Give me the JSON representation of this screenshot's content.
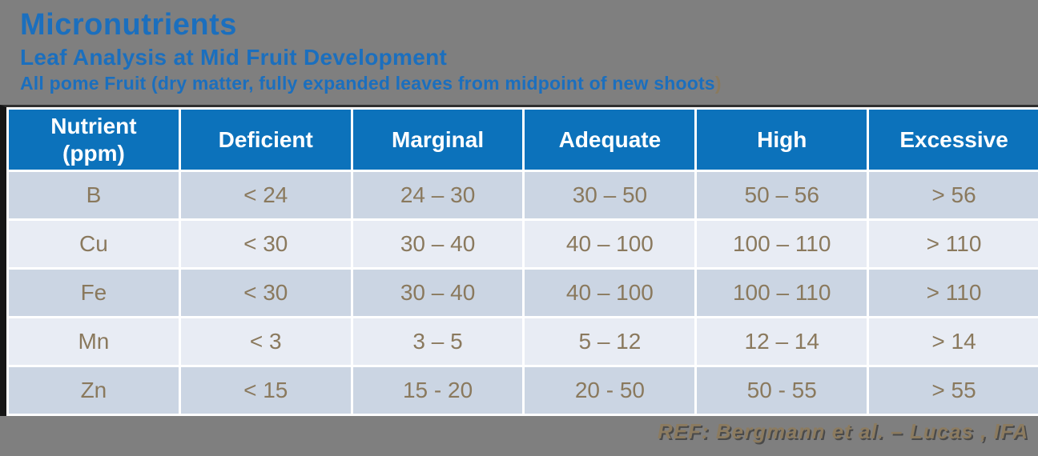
{
  "page": {
    "title": "Micronutrients",
    "subtitle": "Leaf Analysis at Mid Fruit Development",
    "subtitle2_main": "All pome Fruit (dry matter, fully expanded leaves from midpoint of new shoots",
    "subtitle2_paren": ")",
    "footer": "REF: Bergmann et al. – Lucas , IFA"
  },
  "colors": {
    "background_gray": "#7F7F7F",
    "title_blue": "#1B6FBE",
    "header_blue": "#0C72BB",
    "row_odd": "#CBD5E3",
    "row_even": "#E8ECF4",
    "cell_text_brown": "#8A795D",
    "footer_brown": "#8C7B5F",
    "table_border_black": "#161616"
  },
  "table": {
    "headers": [
      "Nutrient\n(ppm)",
      "Deficient",
      "Marginal",
      "Adequate",
      "High",
      "Excessive"
    ],
    "rows": [
      [
        "B",
        "< 24",
        "24 – 30",
        "30 – 50",
        "50 – 56",
        "> 56"
      ],
      [
        "Cu",
        "< 30",
        "30 – 40",
        "40 – 100",
        "100 – 110",
        "> 110"
      ],
      [
        "Fe",
        "< 30",
        "30 – 40",
        "40 – 100",
        "100 – 110",
        "> 110"
      ],
      [
        "Mn",
        "< 3",
        "3 – 5",
        "5 – 12",
        "12 – 14",
        "> 14"
      ],
      [
        "Zn",
        "< 15",
        "15 - 20",
        "20 - 50",
        "50 - 55",
        "> 55"
      ]
    ]
  }
}
